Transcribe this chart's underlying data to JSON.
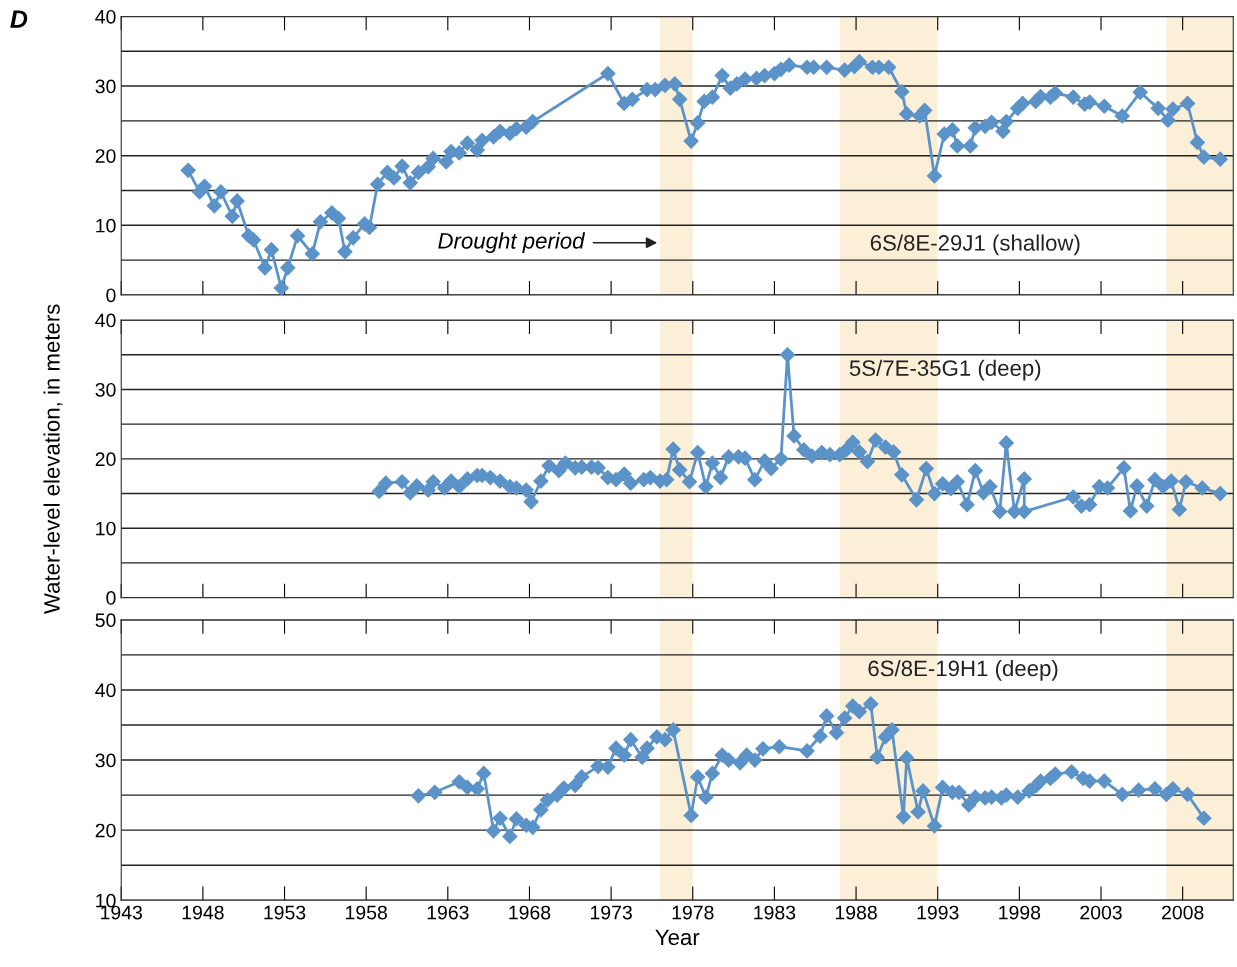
{
  "chart_data": [
    {
      "type": "line",
      "title": "6S/8E-29J1 (shallow)",
      "marker": "diamond",
      "grid": "y",
      "tick_labels": "y",
      "annotations": [
        "D",
        {
          "text": "Drought period",
          "x": 1976,
          "y": 7.5
        }
      ],
      "xlim": [
        1943,
        2011.1
      ],
      "xticks": [
        {
          "value": 1943,
          "label": null
        },
        {
          "value": 1948,
          "label": null
        },
        {
          "value": 1953,
          "label": null
        },
        {
          "value": 1958,
          "label": null
        },
        {
          "value": 1963,
          "label": null
        },
        {
          "value": 1968,
          "label": null
        },
        {
          "value": 1973,
          "label": null
        },
        {
          "value": 1978,
          "label": null
        },
        {
          "value": 1983,
          "label": null
        },
        {
          "value": 1988,
          "label": null
        },
        {
          "value": 1993,
          "label": null
        },
        {
          "value": 1998,
          "label": null
        },
        {
          "value": 2003,
          "label": null
        },
        {
          "value": 2008,
          "label": null
        }
      ],
      "ylim": [
        0,
        40
      ],
      "yticks": [
        0,
        {
          "value": 5,
          "label": null
        },
        10,
        {
          "value": 15,
          "label": null
        },
        20,
        {
          "value": 25,
          "label": null
        },
        30,
        {
          "value": 35,
          "label": null
        },
        40
      ],
      "bands": [
        {
          "axis": "x",
          "from": 1976,
          "to": 1978,
          "color": "#fcefd8"
        },
        {
          "axis": "x",
          "from": 1987,
          "to": 1993,
          "color": "#fcefd8"
        },
        {
          "axis": "x",
          "from": 2007,
          "to": 2011.1,
          "color": "#fcefd8"
        }
      ],
      "series": [
        {
          "color": "#5b93c9",
          "x": [
            1947.1,
            1947.8,
            1948.1,
            1948.7,
            1949.1,
            1949.8,
            1950.1,
            1950.8,
            1951.1,
            1951.8,
            1952.2,
            1952.8,
            1953.2,
            1953.8,
            1954.7,
            1955.2,
            1955.9,
            1956.3,
            1956.7,
            1957.2,
            1957.9,
            1958.2,
            1958.7,
            1959.3,
            1959.7,
            1960.2,
            1960.7,
            1961.2,
            1961.8,
            1962.1,
            1962.9,
            1963.2,
            1963.7,
            1964.2,
            1964.8,
            1965.1,
            1965.8,
            1966.2,
            1966.8,
            1967.2,
            1967.8,
            1968.2,
            1972.8,
            1973.8,
            1974.3,
            1975.2,
            1975.7,
            1976.3,
            1976.9,
            1977.2,
            1977.9,
            1978.3,
            1978.7,
            1979.2,
            1979.8,
            1980.3,
            1980.7,
            1981.2,
            1981.9,
            1982.4,
            1983.0,
            1983.4,
            1983.9,
            1985.0,
            1985.4,
            1986.2,
            1987.3,
            1987.9,
            1988.2,
            1989.0,
            1989.4,
            1990.0,
            1990.8,
            1991.1,
            1991.9,
            1992.2,
            1992.8,
            1993.4,
            1993.9,
            1994.2,
            1995.0,
            1995.3,
            1995.9,
            1996.3,
            1997.0,
            1997.2,
            1997.9,
            1998.2,
            1999.0,
            1999.3,
            1999.9,
            2000.2,
            2001.3,
            2002.0,
            2002.3,
            2003.2,
            2004.3,
            2005.4,
            2006.5,
            2007.1,
            2007.4,
            2008.3,
            2008.9,
            2009.3,
            2010.3
          ],
          "values": [
            17.9,
            14.8,
            15.6,
            12.8,
            14.8,
            11.3,
            13.5,
            8.5,
            7.9,
            3.9,
            6.5,
            1.0,
            3.9,
            8.5,
            5.9,
            10.5,
            11.8,
            11.0,
            6.2,
            8.2,
            10.2,
            9.7,
            15.9,
            17.6,
            16.8,
            18.5,
            16.1,
            17.6,
            18.4,
            19.6,
            19.1,
            20.6,
            20.4,
            21.8,
            20.8,
            22.2,
            22.7,
            23.5,
            23.2,
            23.9,
            24.1,
            24.9,
            31.8,
            27.5,
            28.1,
            29.5,
            29.5,
            30.1,
            30.3,
            28.1,
            22.1,
            24.7,
            27.8,
            28.4,
            31.5,
            29.7,
            30.3,
            31.0,
            31.1,
            31.5,
            31.8,
            32.4,
            33.0,
            32.7,
            32.7,
            32.7,
            32.3,
            32.8,
            33.5,
            32.7,
            32.7,
            32.7,
            29.2,
            26.0,
            25.7,
            26.5,
            17.1,
            23.1,
            23.7,
            21.4,
            21.4,
            24.0,
            24.2,
            24.8,
            23.5,
            24.9,
            26.8,
            27.5,
            27.8,
            28.5,
            28.4,
            29.0,
            28.4,
            27.4,
            27.7,
            27.1,
            25.7,
            29.1,
            26.8,
            25.1,
            26.7,
            27.5,
            21.9,
            19.8,
            19.5
          ]
        }
      ]
    },
    {
      "type": "line",
      "title": "5S/7E-35G1 (deep)",
      "ylabel": "Water-level elevation, in meters",
      "marker": "diamond",
      "grid": "y",
      "tick_labels": "y",
      "xlim": [
        1943,
        2011.1
      ],
      "xticks": [
        {
          "value": 1943,
          "label": null
        },
        {
          "value": 1948,
          "label": null
        },
        {
          "value": 1953,
          "label": null
        },
        {
          "value": 1958,
          "label": null
        },
        {
          "value": 1963,
          "label": null
        },
        {
          "value": 1968,
          "label": null
        },
        {
          "value": 1973,
          "label": null
        },
        {
          "value": 1978,
          "label": null
        },
        {
          "value": 1983,
          "label": null
        },
        {
          "value": 1988,
          "label": null
        },
        {
          "value": 1993,
          "label": null
        },
        {
          "value": 1998,
          "label": null
        },
        {
          "value": 2003,
          "label": null
        },
        {
          "value": 2008,
          "label": null
        }
      ],
      "ylim": [
        0,
        40
      ],
      "yticks": [
        0,
        {
          "value": 5,
          "label": null
        },
        10,
        {
          "value": 15,
          "label": null
        },
        20,
        {
          "value": 25,
          "label": null
        },
        30,
        {
          "value": 35,
          "label": null
        },
        40
      ],
      "bands": [
        {
          "axis": "x",
          "from": 1976,
          "to": 1978,
          "color": "#fcefd8"
        },
        {
          "axis": "x",
          "from": 1987,
          "to": 1993,
          "color": "#fcefd8"
        },
        {
          "axis": "x",
          "from": 2007,
          "to": 2011.1,
          "color": "#fcefd8"
        }
      ],
      "series": [
        {
          "color": "#5b93c9",
          "x": [
            1958.8,
            1959.2,
            1960.2,
            1960.7,
            1961.1,
            1961.8,
            1962.1,
            1962.8,
            1963.2,
            1963.7,
            1964.2,
            1964.8,
            1965.1,
            1965.6,
            1966.2,
            1966.8,
            1967.2,
            1967.8,
            1968.1,
            1968.7,
            1969.2,
            1969.8,
            1970.2,
            1970.8,
            1971.2,
            1971.8,
            1972.2,
            1972.8,
            1973.3,
            1973.8,
            1974.2,
            1975.0,
            1975.4,
            1976.0,
            1976.4,
            1976.8,
            1977.2,
            1977.8,
            1978.3,
            1978.8,
            1979.2,
            1979.7,
            1980.2,
            1980.8,
            1981.2,
            1981.8,
            1982.4,
            1982.8,
            1983.4,
            1983.8,
            1984.2,
            1984.8,
            1985.3,
            1985.9,
            1986.4,
            1987.0,
            1987.4,
            1987.8,
            1988.2,
            1988.7,
            1989.2,
            1989.8,
            1990.3,
            1990.8,
            1991.7,
            1992.3,
            1992.8,
            1993.3,
            1993.8,
            1994.2,
            1994.8,
            1995.3,
            1995.8,
            1996.2,
            1996.8,
            1997.2,
            1997.7,
            1998.3,
            1998.3,
            2001.3,
            2001.8,
            2002.3,
            2002.9,
            2003.4,
            2004.4,
            2004.8,
            2005.2,
            2005.8,
            2006.3,
            2006.8,
            2007.3,
            2007.8,
            2008.2,
            2009.2,
            2010.3
          ],
          "values": [
            15.3,
            16.5,
            16.7,
            15.1,
            16.1,
            15.5,
            16.7,
            15.8,
            16.8,
            16.0,
            17.1,
            17.6,
            17.6,
            17.3,
            16.8,
            16.0,
            15.8,
            15.5,
            13.8,
            16.8,
            19.0,
            18.3,
            19.4,
            18.7,
            18.8,
            18.8,
            18.7,
            17.3,
            17.0,
            17.8,
            16.5,
            17.0,
            17.3,
            16.8,
            17.0,
            21.4,
            18.4,
            16.7,
            20.9,
            16.0,
            19.4,
            17.3,
            20.3,
            20.3,
            20.1,
            17.0,
            19.7,
            18.6,
            20.0,
            35.0,
            23.3,
            21.3,
            20.4,
            20.9,
            20.6,
            20.6,
            21.3,
            22.4,
            21.0,
            19.6,
            22.7,
            21.7,
            21.0,
            17.7,
            14.1,
            18.6,
            15.0,
            16.4,
            15.7,
            16.7,
            13.4,
            18.3,
            15.1,
            16.0,
            12.4,
            22.3,
            12.4,
            17.1,
            12.4,
            14.5,
            13.2,
            13.4,
            16.0,
            15.8,
            18.7,
            12.5,
            16.1,
            13.2,
            17.0,
            16.0,
            16.8,
            12.7,
            16.7,
            15.8,
            15.0
          ]
        }
      ]
    },
    {
      "type": "line",
      "title": "6S/8E-19H1 (deep)",
      "xlabel": "Year",
      "marker": "diamond",
      "grid": "y",
      "xlim": [
        1943,
        2011.1
      ],
      "xticks": [
        1943,
        1948,
        1953,
        1958,
        1963,
        1968,
        1973,
        1978,
        1983,
        1988,
        1993,
        1998,
        2003,
        2008
      ],
      "ylim": [
        10,
        50
      ],
      "yticks": [
        10,
        {
          "value": 15,
          "label": null
        },
        20,
        {
          "value": 25,
          "label": null
        },
        30,
        {
          "value": 35,
          "label": null
        },
        40,
        {
          "value": 45,
          "label": null
        },
        50
      ],
      "bands": [
        {
          "axis": "x",
          "from": 1976,
          "to": 1978,
          "color": "#fcefd8"
        },
        {
          "axis": "x",
          "from": 1987,
          "to": 1993,
          "color": "#fcefd8"
        },
        {
          "axis": "x",
          "from": 2007,
          "to": 2011.1,
          "color": "#fcefd8"
        }
      ],
      "series": [
        {
          "color": "#5b93c9",
          "x": [
            1961.2,
            1962.2,
            1963.7,
            1964.2,
            1964.8,
            1965.2,
            1965.8,
            1966.2,
            1966.8,
            1967.2,
            1967.8,
            1968.2,
            1968.7,
            1969.1,
            1969.7,
            1970.1,
            1970.8,
            1971.2,
            1972.2,
            1972.8,
            1973.3,
            1973.8,
            1974.2,
            1974.9,
            1975.2,
            1975.8,
            1976.3,
            1976.8,
            1977.9,
            1978.3,
            1978.8,
            1979.2,
            1979.8,
            1980.2,
            1980.9,
            1981.3,
            1981.8,
            1982.3,
            1983.3,
            1985.0,
            1985.8,
            1986.2,
            1986.8,
            1987.3,
            1987.8,
            1988.2,
            1988.9,
            1989.3,
            1989.8,
            1990.2,
            1990.9,
            1991.1,
            1991.8,
            1992.1,
            1992.8,
            1993.3,
            1993.9,
            1994.3,
            1994.9,
            1995.3,
            1995.9,
            1996.3,
            1996.9,
            1997.2,
            1997.9,
            1998.6,
            1999.0,
            1999.3,
            1999.9,
            2000.2,
            2001.2,
            2001.9,
            2002.3,
            2003.2,
            2004.3,
            2005.3,
            2006.3,
            2007.0,
            2007.4,
            2008.3,
            2009.3
          ],
          "values": [
            24.9,
            25.4,
            26.9,
            26.1,
            25.9,
            28.1,
            19.9,
            21.7,
            19.1,
            21.6,
            20.7,
            20.4,
            22.9,
            24.3,
            25.0,
            26.0,
            26.4,
            27.6,
            29.1,
            29.0,
            31.7,
            30.7,
            32.9,
            30.4,
            31.7,
            33.3,
            32.9,
            34.3,
            22.1,
            27.6,
            24.7,
            28.1,
            30.7,
            30.0,
            29.6,
            30.7,
            30.0,
            31.6,
            31.9,
            31.3,
            33.4,
            36.3,
            33.9,
            36.0,
            37.7,
            36.9,
            38.0,
            30.4,
            33.3,
            34.3,
            21.9,
            30.3,
            22.6,
            25.6,
            20.6,
            26.1,
            25.4,
            25.4,
            23.6,
            24.7,
            24.6,
            24.7,
            24.6,
            25.0,
            24.7,
            25.6,
            26.3,
            27.0,
            27.4,
            28.0,
            28.3,
            27.4,
            27.0,
            27.0,
            25.1,
            25.7,
            25.9,
            25.1,
            25.9,
            25.1,
            21.7
          ]
        }
      ]
    }
  ]
}
